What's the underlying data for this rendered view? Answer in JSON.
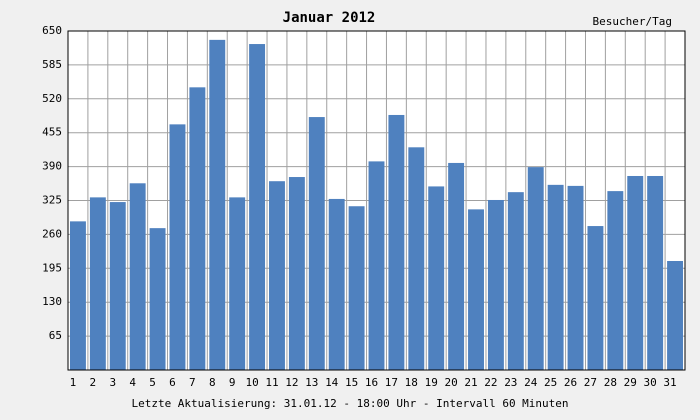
{
  "chart_data": {
    "type": "bar",
    "title": "Januar 2012",
    "y_label": "Besucher/Tag",
    "footer": "Letzte Aktualisierung: 31.01.12 - 18:00 Uhr - Intervall 60 Minuten",
    "categories": [
      "1",
      "2",
      "3",
      "4",
      "5",
      "6",
      "7",
      "8",
      "9",
      "10",
      "11",
      "12",
      "13",
      "14",
      "15",
      "16",
      "17",
      "18",
      "19",
      "20",
      "21",
      "22",
      "23",
      "24",
      "25",
      "26",
      "27",
      "28",
      "29",
      "30",
      "31"
    ],
    "values": [
      285,
      331,
      322,
      358,
      272,
      471,
      542,
      633,
      331,
      625,
      362,
      370,
      485,
      328,
      314,
      400,
      489,
      427,
      352,
      397,
      308,
      326,
      341,
      389,
      355,
      353,
      276,
      343,
      372,
      372,
      209
    ],
    "color": "#4f81bf",
    "ylim": [
      0,
      650
    ],
    "yticks": [
      65,
      130,
      195,
      260,
      325,
      390,
      455,
      520,
      585,
      650
    ],
    "grid": true
  }
}
